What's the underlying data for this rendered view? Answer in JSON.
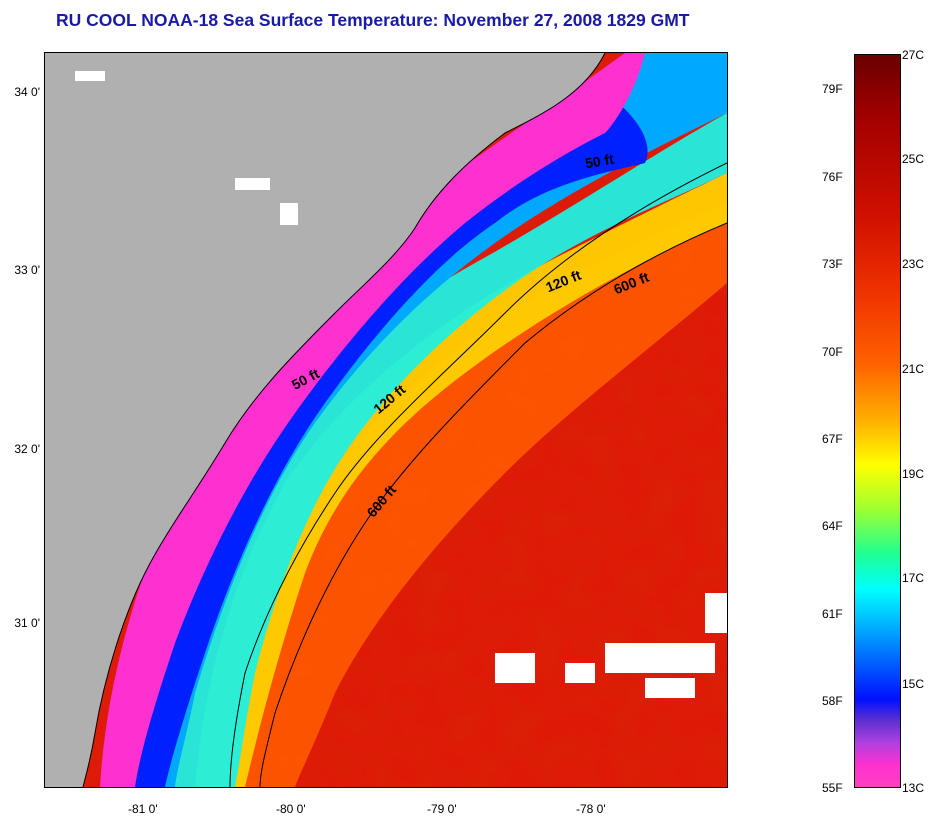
{
  "title": "RU COOL  NOAA-18  Sea Surface Temperature:  November 27, 2008 1829 GMT",
  "map": {
    "lat_labels": [
      "34 0'",
      "33 0'",
      "32 0'",
      "31 0'"
    ],
    "lon_labels": [
      "-81 0'",
      "-80 0'",
      "-79 0'",
      "-78 0'"
    ],
    "contour_labels": [
      "50 ft",
      "120 ft",
      "600 ft",
      "50 ft",
      "120 ft",
      "600 ft"
    ],
    "colors": {
      "land": "#b0b0b0",
      "cloud": "#ffffff",
      "shelf_cold": "#ff40d0"
    }
  },
  "colorbar": {
    "fahrenheit": [
      "79F",
      "76F",
      "73F",
      "70F",
      "67F",
      "64F",
      "61F",
      "58F",
      "55F"
    ],
    "celsius": [
      "27C",
      "25C",
      "23C",
      "21C",
      "19C",
      "17C",
      "15C",
      "13C"
    ]
  }
}
